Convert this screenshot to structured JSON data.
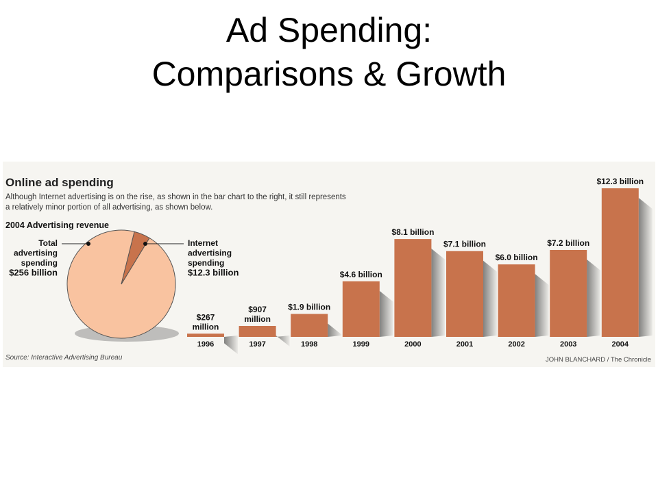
{
  "slide": {
    "title_line1": "Ad Spending:",
    "title_line2": "Comparisons & Growth"
  },
  "graphic": {
    "heading": "Online ad spending",
    "description_line1": "Although Internet advertising is on the rise, as shown in the bar chart to the right, it still represents",
    "description_line2": "a relatively minor portion of all advertising, as shown below.",
    "source": "Source: Interactive Advertising Bureau",
    "credit": "JOHN BLANCHARD / The Chronicle"
  },
  "colors": {
    "bar": "#c8734c",
    "pie_total": "#f9c3a0",
    "pie_internet": "#c8734c",
    "panel_bg": "#f6f5f1"
  },
  "chart_data": [
    {
      "type": "pie",
      "title": "2004 Advertising revenue",
      "slices": [
        {
          "name": "Total advertising spending",
          "value": 256,
          "unit": "billion",
          "label_lines": [
            "Total",
            "advertising",
            "spending",
            "$256 billion"
          ]
        },
        {
          "name": "Internet advertising spending",
          "value": 12.3,
          "unit": "billion",
          "label_lines": [
            "Internet",
            "advertising",
            "spending",
            "$12.3 billion"
          ]
        }
      ]
    },
    {
      "type": "bar",
      "categories": [
        "1996",
        "1997",
        "1998",
        "1999",
        "2000",
        "2001",
        "2002",
        "2003",
        "2004"
      ],
      "values_billion": [
        0.267,
        0.907,
        1.9,
        4.6,
        8.1,
        7.1,
        6.0,
        7.2,
        12.3
      ],
      "data_labels": [
        [
          "$267",
          "million"
        ],
        [
          "$907",
          "million"
        ],
        [
          "$1.9 billion"
        ],
        [
          "$4.6 billion"
        ],
        [
          "$8.1 billion"
        ],
        [
          "$7.1 billion"
        ],
        [
          "$6.0 billion"
        ],
        [
          "$7.2 billion"
        ],
        [
          "$12.3 billion"
        ]
      ],
      "ylim": [
        0,
        12.3
      ]
    }
  ]
}
